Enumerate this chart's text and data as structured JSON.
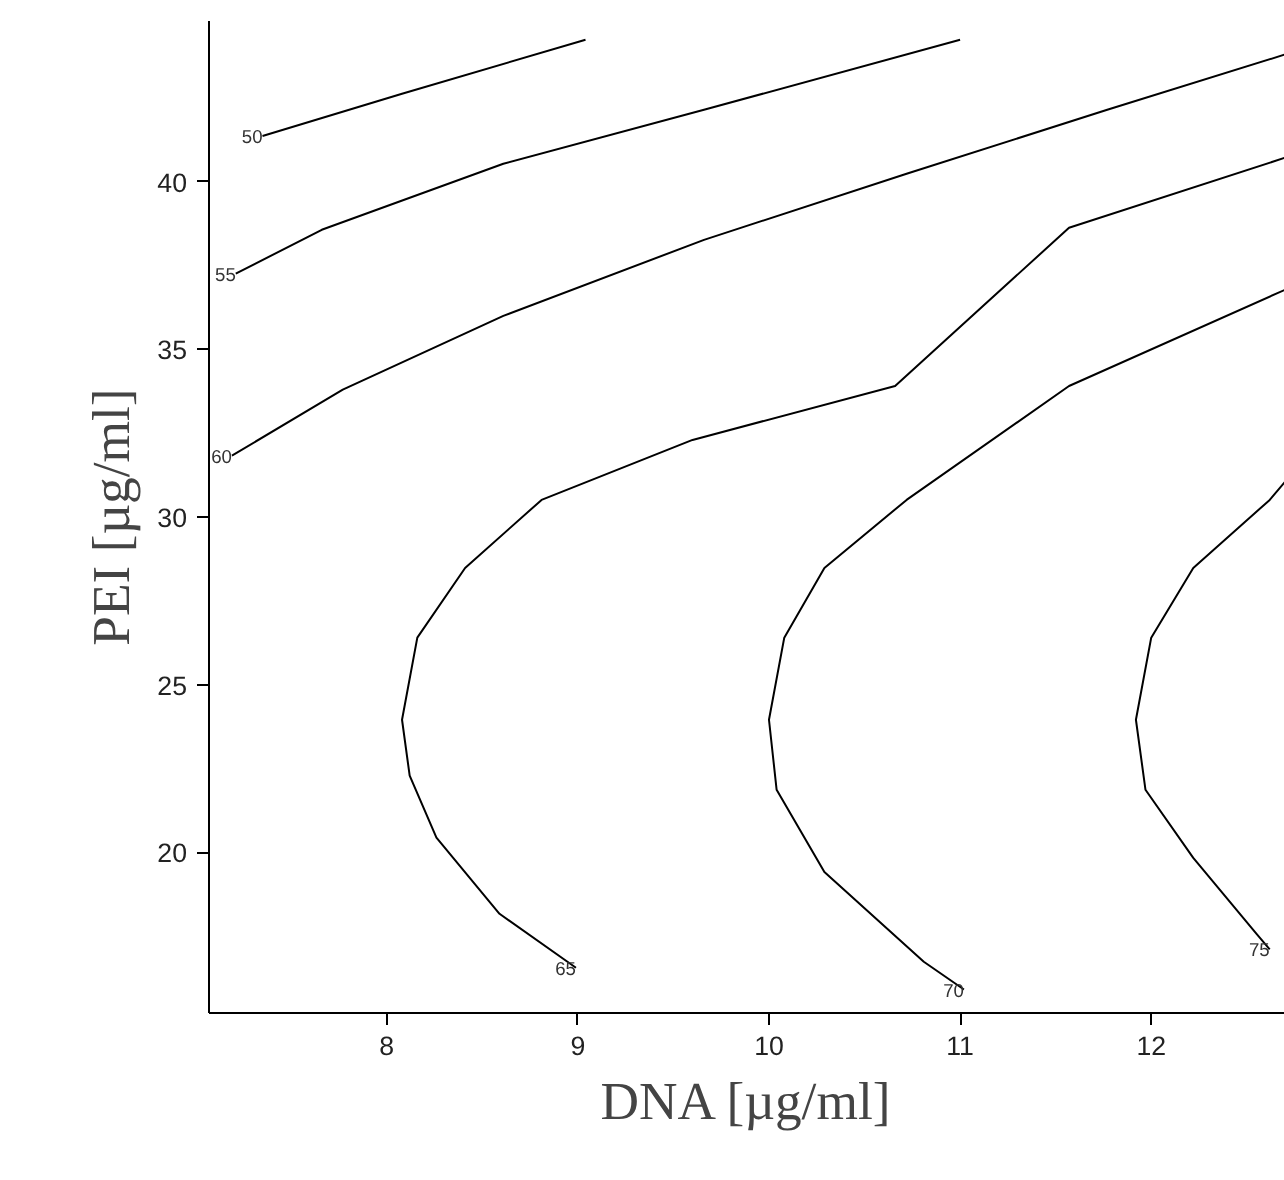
{
  "chart_data": {
    "type": "line",
    "xlabel": "DNA [µg/ml]",
    "ylabel": "PEI [µg/ml]",
    "xlim": [
      7.07,
      12.7
    ],
    "ylim": [
      15.2,
      44.8
    ],
    "xticks": [
      8,
      9,
      10,
      11,
      12
    ],
    "yticks": [
      20,
      25,
      30,
      35,
      40
    ],
    "grid": false,
    "marker": "none",
    "line_style": "solid",
    "series": [
      {
        "name": "50",
        "color": "#000000",
        "x": [
          7.35,
          8.08,
          9.04
        ],
        "values": [
          41.37,
          42.63,
          44.24
        ]
      },
      {
        "name": "55",
        "color": "#000000",
        "x": [
          7.21,
          7.66,
          8.61,
          9.66,
          11.0
        ],
        "values": [
          37.26,
          38.57,
          40.54,
          42.15,
          44.24
        ]
      },
      {
        "name": "60",
        "color": "#000000",
        "x": [
          7.19,
          7.77,
          8.61,
          9.66,
          10.72,
          11.77,
          12.7
        ],
        "values": [
          31.83,
          33.8,
          36.0,
          38.27,
          40.24,
          42.15,
          43.8
        ]
      },
      {
        "name": "65",
        "color": "#000000",
        "x": [
          8.99,
          8.59,
          8.26,
          8.12,
          8.08,
          8.16,
          8.41,
          8.81,
          9.6,
          10.66,
          11.57,
          12.7
        ],
        "values": [
          16.55,
          18.16,
          20.43,
          22.28,
          23.95,
          26.4,
          28.48,
          30.51,
          32.3,
          33.91,
          38.63,
          40.72
        ]
      },
      {
        "name": "70",
        "color": "#000000",
        "x": [
          11.02,
          10.81,
          10.29,
          10.04,
          10.0,
          10.08,
          10.29,
          10.72,
          11.57,
          12.7
        ],
        "values": [
          15.9,
          16.73,
          19.41,
          21.86,
          23.95,
          26.4,
          28.48,
          30.51,
          33.91,
          36.78
        ]
      },
      {
        "name": "75",
        "color": "#000000",
        "x": [
          12.62,
          12.55,
          12.22,
          11.97,
          11.92,
          12.0,
          12.22,
          12.62,
          12.7
        ],
        "values": [
          17.1,
          17.57,
          19.83,
          21.86,
          23.95,
          26.4,
          28.48,
          30.51,
          31.05
        ]
      }
    ]
  }
}
